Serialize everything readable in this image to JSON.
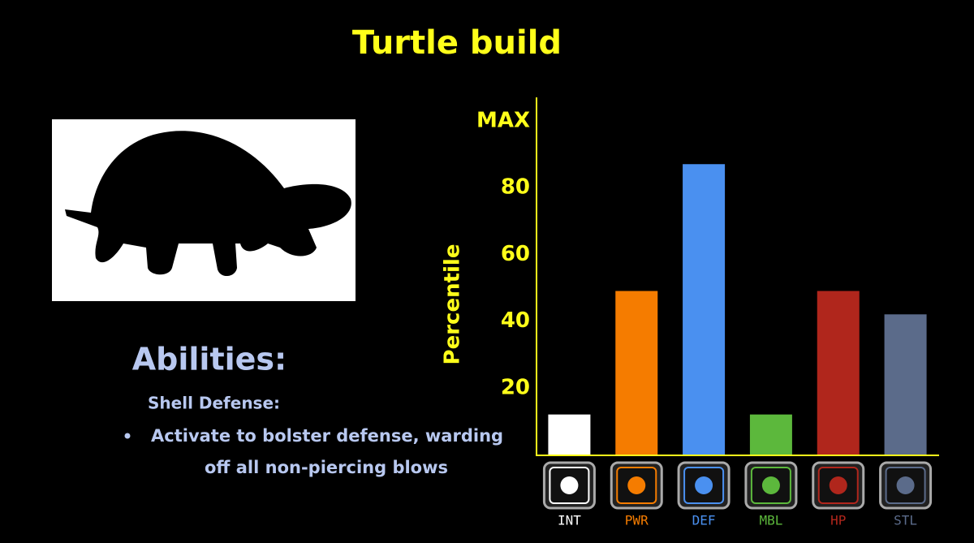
{
  "title": "Turtle build",
  "abilities": {
    "heading": "Abilities:",
    "name": "Shell Defense:",
    "description": [
      "Activate to bolster defense, warding",
      "off all non-piercing blows"
    ]
  },
  "chart_data": {
    "type": "bar",
    "ylabel": "Percentile",
    "categories": [
      "INT",
      "PWR",
      "DEF",
      "MBL",
      "HP",
      "STL"
    ],
    "values": [
      12,
      49,
      87,
      12,
      49,
      42
    ],
    "colors": [
      "#ffffff",
      "#f57c00",
      "#4a90f0",
      "#5cb83c",
      "#b0261c",
      "#5b6b8a"
    ],
    "ylim": [
      0,
      107
    ],
    "yticks": [
      20,
      40,
      60,
      80,
      {
        "value": 100,
        "label": "MAX"
      }
    ],
    "grid": false
  }
}
